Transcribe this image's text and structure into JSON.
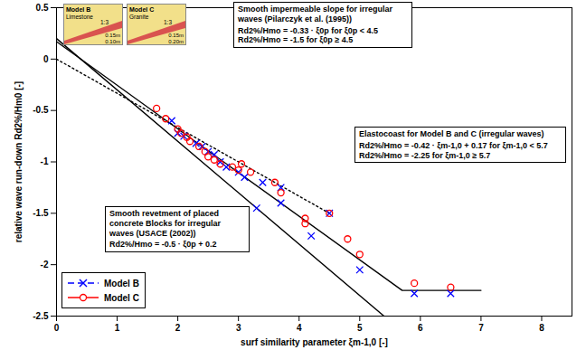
{
  "chart_data": {
    "type": "scatter",
    "xlabel": "surf similarity parameter ξm-1,0 [-]",
    "ylabel": "relative wave run-down Rd2%/Hm0 [-]",
    "xlim": [
      0,
      8.5
    ],
    "ylim": [
      -2.5,
      0.5
    ],
    "xticks": [
      0,
      1,
      2,
      3,
      4,
      5,
      6,
      7,
      8
    ],
    "yticks": [
      -2.5,
      -2,
      -1.5,
      -1,
      -0.5,
      0,
      0.5
    ],
    "legend": "lower left",
    "series": [
      {
        "type": "line",
        "color": "#000000",
        "line_style": "dotted",
        "x": [
          0,
          4.5
        ],
        "values": [
          0,
          -1.5
        ]
      },
      {
        "type": "line",
        "color": "#000000",
        "line_style": "solid",
        "x": [
          0,
          5.4
        ],
        "values": [
          0.2,
          -2.5
        ]
      },
      {
        "type": "line",
        "color": "#000000",
        "line_style": "solid",
        "x": [
          0,
          5.7,
          7
        ],
        "values": [
          0.17,
          -2.25,
          -2.25
        ]
      },
      {
        "type": "scatter",
        "name": "Model B",
        "color": "#0000ff",
        "marker": "x",
        "line_style": "dashed",
        "x": [
          1.9,
          2.0,
          2.1,
          2.3,
          2.4,
          2.5,
          2.6,
          2.7,
          2.8,
          3.0,
          3.1,
          3.3,
          3.4,
          3.7,
          3.7,
          4.2,
          4.5,
          5.0,
          5.9,
          6.5
        ],
        "values": [
          -0.6,
          -0.72,
          -0.75,
          -0.82,
          -0.85,
          -0.9,
          -0.93,
          -1.0,
          -1.05,
          -1.1,
          -1.15,
          -1.45,
          -1.2,
          -1.4,
          -1.25,
          -1.72,
          -1.5,
          -2.05,
          -2.28,
          -2.28
        ]
      },
      {
        "type": "scatter",
        "name": "Model C",
        "color": "#ff0000",
        "marker": "circle",
        "line_style": "solid",
        "x": [
          1.65,
          1.8,
          2.0,
          2.05,
          2.15,
          2.2,
          2.35,
          2.45,
          2.5,
          2.6,
          2.7,
          2.9,
          3.0,
          3.05,
          3.2,
          3.6,
          3.7,
          4.1,
          4.1,
          4.5,
          4.8,
          5.0,
          5.9,
          6.5
        ],
        "values": [
          -0.48,
          -0.58,
          -0.68,
          -0.72,
          -0.76,
          -0.8,
          -0.85,
          -0.9,
          -0.95,
          -0.98,
          -1.02,
          -1.05,
          -1.08,
          -1.02,
          -1.1,
          -1.2,
          -1.3,
          -1.55,
          -1.6,
          -1.5,
          -1.75,
          -1.9,
          -2.18,
          -2.22
        ]
      }
    ],
    "annotations": [
      {
        "title": "Smooth impermeable slope for irregular waves (Pilarczyk et al. (1995))",
        "lines": [
          "Rd2%/Hmo = -0.33 · ξ0p for ξ0p < 4.5",
          "Rd2%/Hmo = -1.5 for ξ0p ≥ 4.5"
        ]
      },
      {
        "title": "Elastocoast for Model B and C (irregular waves)",
        "lines": [
          "Rd2%/Hmo = -0.42 · ξm-1,0 + 0.17 for ξm-1,0 < 5.7",
          "Rd2%/Hmo = -2.25 for ξm-1,0 ≥ 5.7"
        ]
      },
      {
        "title": "Smooth revetment of placed concrete Blocks for irregular waves (USACE (2002))",
        "lines": [
          "Rd2%/Hmo = -0.5 · ξ0p + 0.2"
        ]
      }
    ],
    "insets": [
      {
        "title": "Model B",
        "material": "Limestone",
        "slope": "1:3",
        "layers": [
          "0.15m",
          "0.10m"
        ]
      },
      {
        "title": "Model C",
        "material": "Granite",
        "slope": "1:3",
        "layers": [
          "0.15m",
          "0.20m"
        ]
      }
    ]
  }
}
